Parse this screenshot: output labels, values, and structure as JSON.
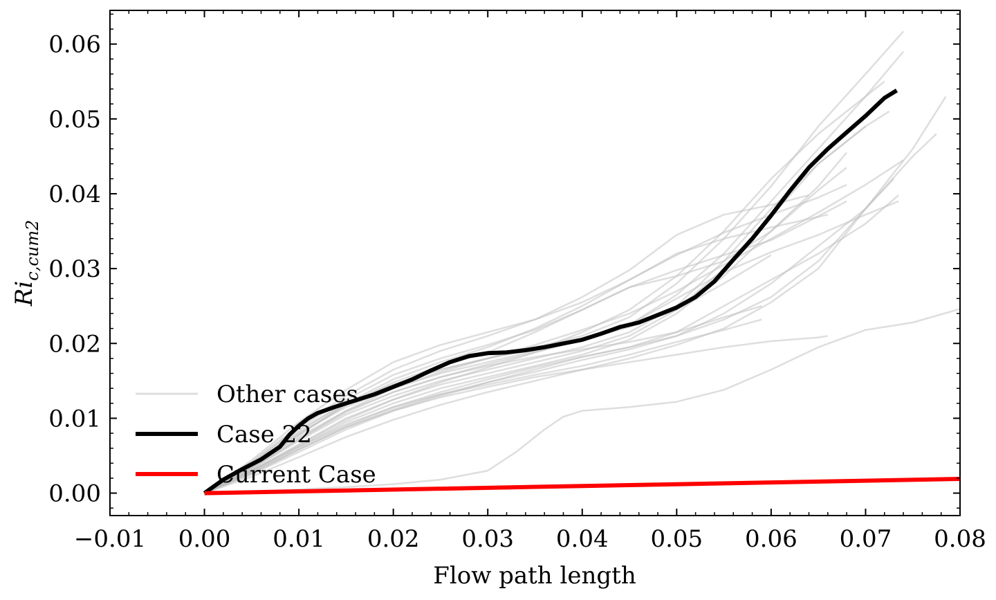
{
  "chart_data": {
    "type": "line",
    "title": "",
    "xlabel": "Flow path length",
    "ylabel": "Ri",
    "ylabel_subscript": "c,cum2",
    "xlim": [
      -0.01,
      0.08
    ],
    "ylim": [
      -0.003,
      0.0645
    ],
    "x_ticks": [
      -0.01,
      0.0,
      0.01,
      0.02,
      0.03,
      0.04,
      0.05,
      0.06,
      0.07,
      0.08
    ],
    "x_tick_labels": [
      "−0.01",
      "0.00",
      "0.01",
      "0.02",
      "0.03",
      "0.04",
      "0.05",
      "0.06",
      "0.07",
      "0.08"
    ],
    "y_ticks": [
      0.0,
      0.01,
      0.02,
      0.03,
      0.04,
      0.05,
      0.06
    ],
    "y_tick_labels": [
      "0.00",
      "0.01",
      "0.02",
      "0.03",
      "0.04",
      "0.05",
      "0.06"
    ],
    "grid": false,
    "legend_position": "lower-left",
    "legend": [
      {
        "label": "Other cases",
        "color": "#d3d3d3"
      },
      {
        "label": "Case 22",
        "color": "#000000"
      },
      {
        "label": "Current Case",
        "color": "#ff0000"
      }
    ],
    "series": [
      {
        "name": "Case 22",
        "color": "#000000",
        "x": [
          0.0,
          0.002,
          0.004,
          0.006,
          0.008,
          0.009,
          0.01,
          0.011,
          0.012,
          0.014,
          0.016,
          0.018,
          0.02,
          0.022,
          0.024,
          0.026,
          0.028,
          0.03,
          0.032,
          0.034,
          0.036,
          0.038,
          0.04,
          0.042,
          0.044,
          0.046,
          0.048,
          0.05,
          0.052,
          0.054,
          0.056,
          0.058,
          0.06,
          0.062,
          0.064,
          0.066,
          0.068,
          0.07,
          0.072,
          0.0733
        ],
        "y": [
          0.0,
          0.0018,
          0.0032,
          0.0045,
          0.0062,
          0.0078,
          0.009,
          0.01,
          0.0107,
          0.0116,
          0.0124,
          0.0132,
          0.0142,
          0.0152,
          0.0164,
          0.0175,
          0.0183,
          0.0187,
          0.0188,
          0.0191,
          0.0195,
          0.02,
          0.0205,
          0.0213,
          0.0222,
          0.0228,
          0.0238,
          0.0248,
          0.0262,
          0.0283,
          0.0312,
          0.034,
          0.0371,
          0.0404,
          0.0435,
          0.046,
          0.0482,
          0.0504,
          0.0528,
          0.0538
        ]
      },
      {
        "name": "Current Case",
        "color": "#ff0000",
        "x": [
          0.0,
          0.08
        ],
        "y": [
          0.0,
          0.0019
        ]
      }
    ],
    "other_cases": [
      {
        "x": [
          0,
          0.005,
          0.01,
          0.015,
          0.02,
          0.025,
          0.03,
          0.035,
          0.04,
          0.045,
          0.05,
          0.055,
          0.06,
          0.065,
          0.07,
          0.074
        ],
        "y": [
          0,
          0.004,
          0.0085,
          0.012,
          0.0145,
          0.0165,
          0.018,
          0.0195,
          0.021,
          0.0235,
          0.028,
          0.034,
          0.041,
          0.049,
          0.056,
          0.0617
        ]
      },
      {
        "x": [
          0,
          0.005,
          0.01,
          0.015,
          0.02,
          0.025,
          0.03,
          0.035,
          0.04,
          0.045,
          0.05,
          0.055,
          0.06,
          0.065,
          0.07,
          0.074
        ],
        "y": [
          0,
          0.0035,
          0.0075,
          0.011,
          0.0135,
          0.0155,
          0.0172,
          0.0188,
          0.0205,
          0.0225,
          0.0265,
          0.032,
          0.039,
          0.046,
          0.053,
          0.059
        ]
      },
      {
        "x": [
          0,
          0.005,
          0.01,
          0.015,
          0.02,
          0.025,
          0.03,
          0.035,
          0.04,
          0.045,
          0.05,
          0.055,
          0.06,
          0.065,
          0.07,
          0.072
        ],
        "y": [
          0,
          0.0038,
          0.008,
          0.0115,
          0.014,
          0.016,
          0.0175,
          0.019,
          0.0215,
          0.0245,
          0.029,
          0.035,
          0.042,
          0.048,
          0.053,
          0.055
        ]
      },
      {
        "x": [
          0,
          0.005,
          0.01,
          0.015,
          0.02,
          0.025,
          0.03,
          0.035,
          0.04,
          0.045,
          0.05,
          0.055,
          0.06,
          0.065,
          0.07,
          0.0725
        ],
        "y": [
          0,
          0.003,
          0.0065,
          0.01,
          0.0125,
          0.0145,
          0.016,
          0.0175,
          0.019,
          0.021,
          0.0245,
          0.03,
          0.037,
          0.044,
          0.049,
          0.051
        ]
      },
      {
        "x": [
          0,
          0.005,
          0.01,
          0.015,
          0.02,
          0.025,
          0.03,
          0.035,
          0.04,
          0.045,
          0.05,
          0.055,
          0.06,
          0.065,
          0.07
        ],
        "y": [
          0,
          0.0032,
          0.007,
          0.0105,
          0.013,
          0.015,
          0.0165,
          0.018,
          0.0195,
          0.0215,
          0.025,
          0.031,
          0.038,
          0.044,
          0.049
        ]
      },
      {
        "x": [
          0,
          0.005,
          0.01,
          0.015,
          0.02,
          0.025,
          0.03,
          0.035,
          0.04,
          0.045,
          0.05,
          0.055,
          0.06,
          0.065,
          0.068
        ],
        "y": [
          0,
          0.0036,
          0.0078,
          0.0118,
          0.0148,
          0.017,
          0.0188,
          0.0215,
          0.0245,
          0.0275,
          0.029,
          0.031,
          0.035,
          0.041,
          0.0455
        ]
      },
      {
        "x": [
          0,
          0.005,
          0.01,
          0.015,
          0.02,
          0.025,
          0.03,
          0.035,
          0.04,
          0.045,
          0.05,
          0.055,
          0.06,
          0.065,
          0.068
        ],
        "y": [
          0,
          0.003,
          0.0062,
          0.0095,
          0.012,
          0.014,
          0.0155,
          0.017,
          0.0185,
          0.0205,
          0.024,
          0.029,
          0.035,
          0.0405,
          0.0435
        ]
      },
      {
        "x": [
          0,
          0.005,
          0.01,
          0.015,
          0.02,
          0.025,
          0.03,
          0.035,
          0.04,
          0.045,
          0.05,
          0.055,
          0.06,
          0.065,
          0.07,
          0.073
        ],
        "y": [
          0,
          0.0025,
          0.0055,
          0.0085,
          0.011,
          0.013,
          0.0148,
          0.0165,
          0.0182,
          0.0195,
          0.021,
          0.024,
          0.028,
          0.033,
          0.038,
          0.042
        ]
      },
      {
        "x": [
          0,
          0.005,
          0.01,
          0.015,
          0.02,
          0.025,
          0.03,
          0.035,
          0.04,
          0.045,
          0.05,
          0.055,
          0.06,
          0.065,
          0.07,
          0.0735
        ],
        "y": [
          0,
          0.0028,
          0.006,
          0.009,
          0.0115,
          0.0135,
          0.0152,
          0.0168,
          0.0182,
          0.0195,
          0.0215,
          0.025,
          0.0285,
          0.032,
          0.036,
          0.0398
        ]
      },
      {
        "x": [
          0,
          0.005,
          0.01,
          0.015,
          0.02,
          0.025,
          0.03,
          0.035,
          0.04,
          0.045,
          0.05,
          0.055,
          0.06,
          0.065,
          0.07,
          0.0735
        ],
        "y": [
          0,
          0.003,
          0.0064,
          0.0098,
          0.0125,
          0.0148,
          0.0168,
          0.0188,
          0.0205,
          0.0225,
          0.026,
          0.0295,
          0.0322,
          0.0345,
          0.0372,
          0.039
        ]
      },
      {
        "x": [
          0,
          0.005,
          0.01,
          0.015,
          0.02,
          0.025,
          0.03,
          0.035,
          0.04,
          0.045,
          0.05,
          0.055,
          0.06,
          0.065,
          0.07,
          0.074
        ],
        "y": [
          0,
          0.0034,
          0.0072,
          0.011,
          0.014,
          0.0162,
          0.018,
          0.0198,
          0.0218,
          0.024,
          0.027,
          0.0305,
          0.034,
          0.0375,
          0.0412,
          0.0445
        ]
      },
      {
        "x": [
          0,
          0.005,
          0.01,
          0.015,
          0.02,
          0.025,
          0.03,
          0.035,
          0.04,
          0.045,
          0.05,
          0.055,
          0.06,
          0.065,
          0.07,
          0.075,
          0.0775
        ],
        "y": [
          0,
          0.0026,
          0.0058,
          0.0088,
          0.0112,
          0.0132,
          0.0148,
          0.0162,
          0.0178,
          0.0192,
          0.021,
          0.0232,
          0.0262,
          0.031,
          0.038,
          0.045,
          0.048
        ]
      },
      {
        "x": [
          0,
          0.005,
          0.01,
          0.015,
          0.02,
          0.025,
          0.03,
          0.035,
          0.04,
          0.045,
          0.05,
          0.055,
          0.06,
          0.065,
          0.07,
          0.075,
          0.0785
        ],
        "y": [
          0,
          0.0022,
          0.0048,
          0.0075,
          0.0098,
          0.0118,
          0.0135,
          0.015,
          0.0165,
          0.018,
          0.0198,
          0.022,
          0.0255,
          0.03,
          0.038,
          0.046,
          0.053
        ]
      },
      {
        "x": [
          0,
          0.005,
          0.01,
          0.015,
          0.02,
          0.025,
          0.03,
          0.035,
          0.04,
          0.045,
          0.05,
          0.055,
          0.06,
          0.065,
          0.068
        ],
        "y": [
          0,
          0.004,
          0.0088,
          0.0125,
          0.0158,
          0.018,
          0.0198,
          0.0218,
          0.0245,
          0.0275,
          0.0298,
          0.0318,
          0.0338,
          0.037,
          0.039
        ]
      },
      {
        "x": [
          0,
          0.005,
          0.01,
          0.015,
          0.02,
          0.025,
          0.03,
          0.035,
          0.04,
          0.045,
          0.05,
          0.055,
          0.06,
          0.065,
          0.068
        ],
        "y": [
          0,
          0.0038,
          0.0082,
          0.012,
          0.0152,
          0.0175,
          0.0195,
          0.022,
          0.025,
          0.0285,
          0.0318,
          0.0348,
          0.0372,
          0.0395,
          0.0412
        ]
      },
      {
        "x": [
          0,
          0.005,
          0.01,
          0.015,
          0.02,
          0.025,
          0.03,
          0.035,
          0.04,
          0.045,
          0.05,
          0.055,
          0.06,
          0.064
        ],
        "y": [
          0,
          0.0042,
          0.009,
          0.013,
          0.0165,
          0.019,
          0.021,
          0.0232,
          0.0262,
          0.0298,
          0.0345,
          0.0372,
          0.0385,
          0.0398
        ]
      },
      {
        "x": [
          0,
          0.005,
          0.01,
          0.015,
          0.02,
          0.025,
          0.03,
          0.035,
          0.04,
          0.045,
          0.05,
          0.055,
          0.06,
          0.066
        ],
        "y": [
          0,
          0.0044,
          0.0095,
          0.0138,
          0.0175,
          0.0198,
          0.0215,
          0.0232,
          0.0255,
          0.0285,
          0.032,
          0.034,
          0.0355,
          0.0372
        ]
      },
      {
        "x": [
          0,
          0.005,
          0.01,
          0.015,
          0.02,
          0.025,
          0.03,
          0.035,
          0.04,
          0.045,
          0.05,
          0.055,
          0.06
        ],
        "y": [
          0,
          0.0035,
          0.0078,
          0.0118,
          0.0145,
          0.0165,
          0.018,
          0.0192,
          0.0205,
          0.0222,
          0.0245,
          0.028,
          0.0318
        ]
      },
      {
        "x": [
          0,
          0.005,
          0.01,
          0.015,
          0.02,
          0.025,
          0.03,
          0.035,
          0.04,
          0.045,
          0.05,
          0.055,
          0.059
        ],
        "y": [
          0,
          0.0033,
          0.0072,
          0.0108,
          0.0135,
          0.0155,
          0.017,
          0.0182,
          0.0192,
          0.0202,
          0.0215,
          0.0235,
          0.025
        ]
      },
      {
        "x": [
          0,
          0.005,
          0.01,
          0.015,
          0.02,
          0.025,
          0.03,
          0.035,
          0.04,
          0.045,
          0.05,
          0.055,
          0.059
        ],
        "y": [
          0,
          0.0029,
          0.0062,
          0.0092,
          0.0115,
          0.0132,
          0.0145,
          0.0158,
          0.017,
          0.0185,
          0.0202,
          0.0218,
          0.0232
        ]
      },
      {
        "x": [
          0,
          0.005,
          0.01,
          0.015,
          0.02,
          0.025,
          0.03,
          0.035,
          0.04,
          0.045,
          0.05,
          0.055,
          0.06,
          0.065,
          0.066
        ],
        "y": [
          0,
          0.0027,
          0.0058,
          0.0088,
          0.011,
          0.0128,
          0.0142,
          0.0155,
          0.0165,
          0.0175,
          0.0185,
          0.0195,
          0.0203,
          0.0208,
          0.021
        ]
      },
      {
        "x": [
          0,
          0.01,
          0.015,
          0.02,
          0.025,
          0.03,
          0.033,
          0.036,
          0.038,
          0.04,
          0.045,
          0.05,
          0.055,
          0.06,
          0.065,
          0.07,
          0.075,
          0.08
        ],
        "y": [
          0,
          0.0005,
          0.0008,
          0.0012,
          0.0018,
          0.003,
          0.0055,
          0.0085,
          0.0102,
          0.011,
          0.0115,
          0.0122,
          0.0138,
          0.0165,
          0.0195,
          0.0218,
          0.0228,
          0.0246
        ]
      }
    ]
  }
}
